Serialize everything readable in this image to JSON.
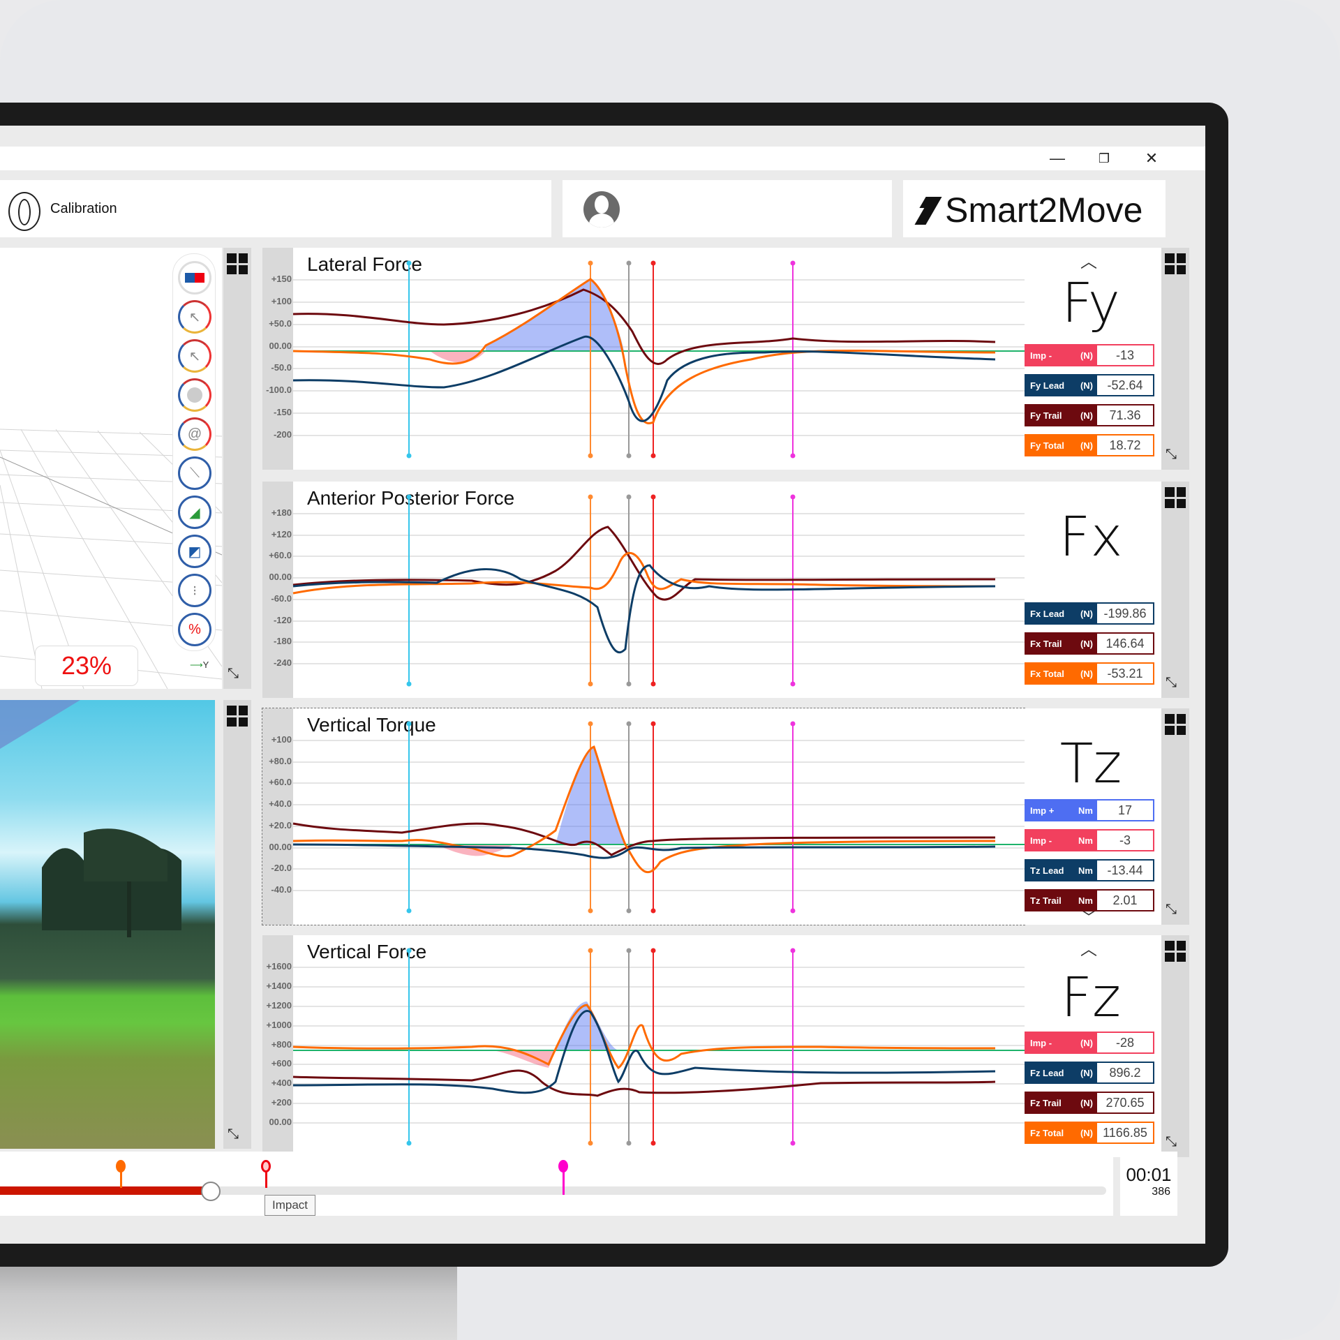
{
  "window": {
    "controls": {
      "minimize": "—",
      "restore": "❐",
      "close": "✕"
    }
  },
  "header": {
    "calibration_label": "Calibration",
    "logo_text": "Smart2Move"
  },
  "viewer3d": {
    "percent": "23%",
    "axis_label": "Y",
    "tools": [
      "plates-icon",
      "force-arrow-icon",
      "force-trail-icon",
      "cop-dot-icon",
      "spiral-icon",
      "segment-icon",
      "grid-slope-icon",
      "balance-icon",
      "footprint-icon",
      "percent-icon"
    ]
  },
  "colors": {
    "lead": "#0d3d66",
    "trail": "#6d0a0f",
    "total": "#ff6a00",
    "imp_pos": "#4e6ef2",
    "imp_neg": "#f2405e",
    "baseline": "#1fb36b"
  },
  "charts": [
    {
      "title": "Lateral Force",
      "symbol": "Fy",
      "yticks": [
        "+150",
        "+100",
        "+50.0",
        "00.00",
        "-50.0",
        "-100.0",
        "-150",
        "-200"
      ],
      "rows": [
        {
          "label": "Imp -",
          "unit": "(N)",
          "value": "-13",
          "kind": "imp_neg"
        },
        {
          "label": "Fy Lead",
          "unit": "(N)",
          "value": "-52.64",
          "kind": "lead"
        },
        {
          "label": "Fy Trail",
          "unit": "(N)",
          "value": "71.36",
          "kind": "trail"
        },
        {
          "label": "Fy Total",
          "unit": "(N)",
          "value": "18.72",
          "kind": "total"
        }
      ]
    },
    {
      "title": "Anterior Posterior Force",
      "symbol": "Fx",
      "yticks": [
        "+180",
        "+120",
        "+60.0",
        "00.00",
        "-60.0",
        "-120",
        "-180",
        "-240"
      ],
      "rows": [
        {
          "label": "Fx Lead",
          "unit": "(N)",
          "value": "-199.86",
          "kind": "lead"
        },
        {
          "label": "Fx Trail",
          "unit": "(N)",
          "value": "146.64",
          "kind": "trail"
        },
        {
          "label": "Fx Total",
          "unit": "(N)",
          "value": "-53.21",
          "kind": "total"
        }
      ]
    },
    {
      "title": "Vertical Torque",
      "symbol": "Tz",
      "yticks": [
        "+100",
        "+80.0",
        "+60.0",
        "+40.0",
        "+20.0",
        "00.00",
        "-20.0",
        "-40.0"
      ],
      "rows": [
        {
          "label": "Imp +",
          "unit": "Nm",
          "value": "17",
          "kind": "imp_pos"
        },
        {
          "label": "Imp -",
          "unit": "Nm",
          "value": "-3",
          "kind": "imp_neg"
        },
        {
          "label": "Tz Lead",
          "unit": "Nm",
          "value": "-13.44",
          "kind": "lead"
        },
        {
          "label": "Tz Trail",
          "unit": "Nm",
          "value": "2.01",
          "kind": "trail"
        }
      ]
    },
    {
      "title": "Vertical Force",
      "symbol": "Fz",
      "yticks": [
        "+1600",
        "+1400",
        "+1200",
        "+1000",
        "+800",
        "+600",
        "+400",
        "+200",
        "00.00"
      ],
      "rows": [
        {
          "label": "Imp -",
          "unit": "(N)",
          "value": "-28",
          "kind": "imp_neg"
        },
        {
          "label": "Fz Lead",
          "unit": "(N)",
          "value": "896.2",
          "kind": "lead"
        },
        {
          "label": "Fz Trail",
          "unit": "(N)",
          "value": "270.65",
          "kind": "trail"
        },
        {
          "label": "Fz Total",
          "unit": "(N)",
          "value": "1166.85",
          "kind": "total"
        }
      ]
    }
  ],
  "timeline": {
    "tooltip": "Impact",
    "time": "00:01",
    "frame": "386",
    "progress_pct": 16
  }
}
